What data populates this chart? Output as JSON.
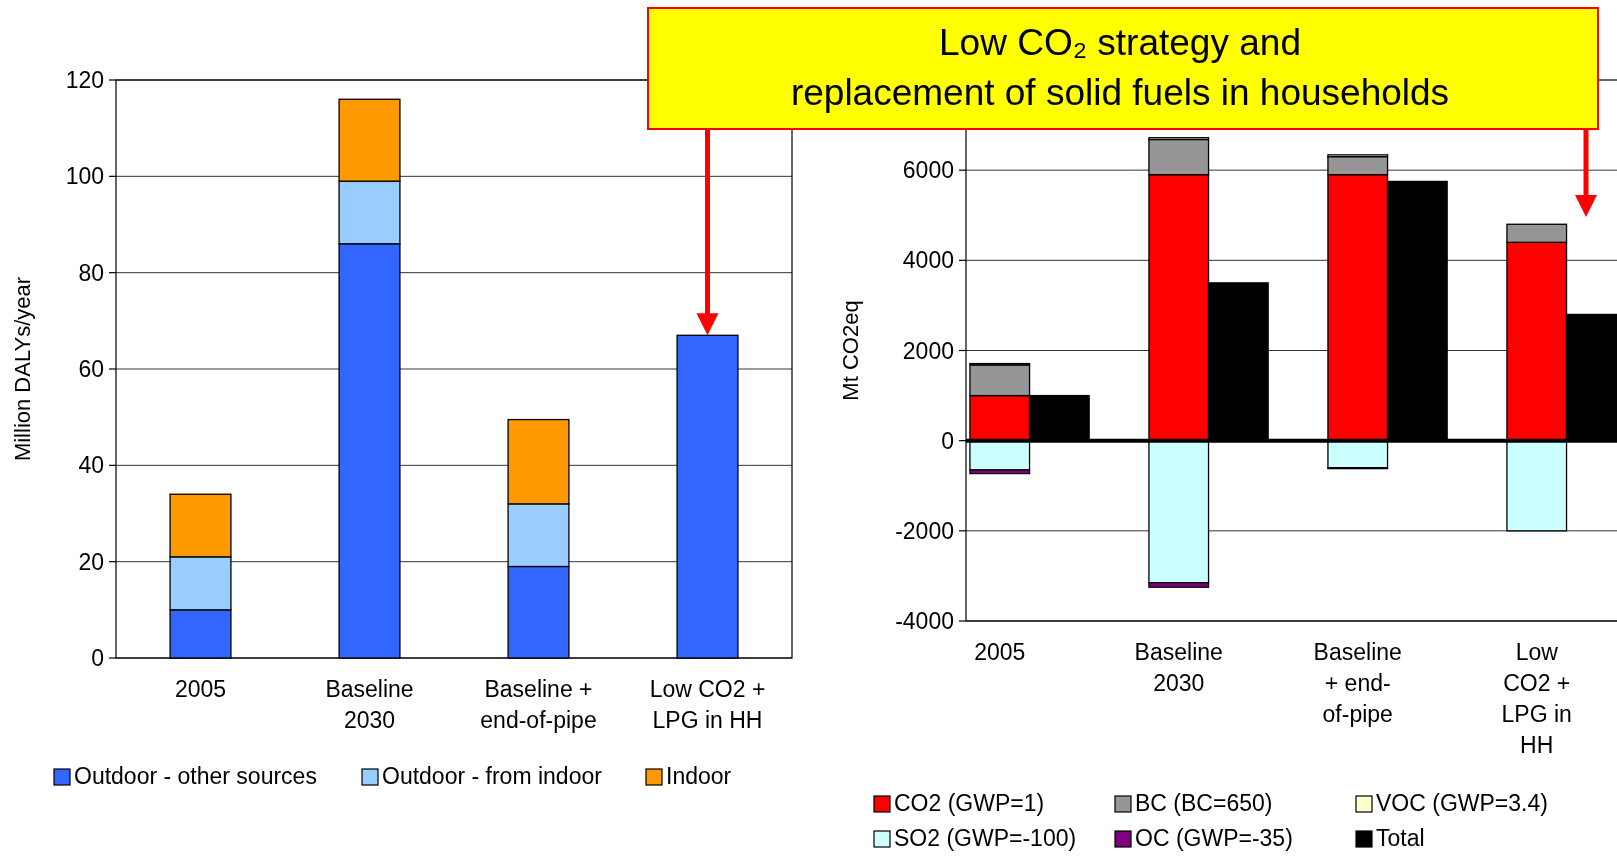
{
  "chart_data": [
    {
      "type": "bar",
      "stacked": true,
      "categories": [
        "2005",
        "Baseline\n2030",
        "Baseline +\nend-of-pipe",
        "Low CO2 +\nLPG in HH"
      ],
      "ylabel": "Million DALYs/year",
      "ylim": [
        0,
        120
      ],
      "yticks": [
        0,
        20,
        40,
        60,
        80,
        100,
        120
      ],
      "grid": "y",
      "legend": "bottom",
      "series": [
        {
          "name": "Outdoor - other sources",
          "color": "#3366ff",
          "values": [
            10,
            86,
            19,
            67
          ]
        },
        {
          "name": "Outdoor - from indoor",
          "color": "#99ccff",
          "values": [
            11,
            13,
            13,
            null
          ]
        },
        {
          "name": "Indoor",
          "color": "#ff9900",
          "values": [
            13,
            17,
            17.5,
            null
          ]
        }
      ]
    },
    {
      "type": "bar",
      "stacked": true,
      "categories": [
        "2005",
        null,
        "Baseline\n2030",
        null,
        "Baseline\n+ end-\nof-pipe",
        null,
        "Low\nCO2 +\nLPG in\nHH",
        null
      ],
      "ylabel": "Mt CO2eq",
      "ylim": [
        -4000,
        8000
      ],
      "yticks": [
        -4000,
        -2000,
        0,
        2000,
        4000,
        6000
      ],
      "grid": "y",
      "legend": "bottom",
      "annotations": [
        "Low CO₂ strategy and\nreplacement of solid fuels in households"
      ],
      "series": [
        {
          "name": "CO2 (GWP=1)",
          "color": "#ff0000",
          "values": [
            1000,
            null,
            5900,
            null,
            5900,
            null,
            4400,
            null
          ]
        },
        {
          "name": "SO2 (GWP=-100)",
          "color": "#ccffff",
          "values": [
            -650,
            null,
            -3150,
            null,
            -600,
            null,
            -2000,
            null
          ]
        },
        {
          "name": "BC (BC=650)",
          "color": "#969696",
          "values": [
            680,
            null,
            780,
            null,
            400,
            null,
            400,
            null
          ]
        },
        {
          "name": "OC (GWP=-35)",
          "color": "#800080",
          "values": [
            -80,
            null,
            -100,
            null,
            -20,
            null,
            null,
            null
          ]
        },
        {
          "name": "VOC (GWP=3.4)",
          "color": "#ffffcc",
          "values": [
            30,
            null,
            40,
            null,
            40,
            null,
            null,
            null
          ]
        },
        {
          "name": "Total",
          "color": "#000000",
          "values": [
            null,
            1000,
            null,
            3500,
            null,
            5750,
            null,
            2800
          ]
        }
      ]
    }
  ]
}
